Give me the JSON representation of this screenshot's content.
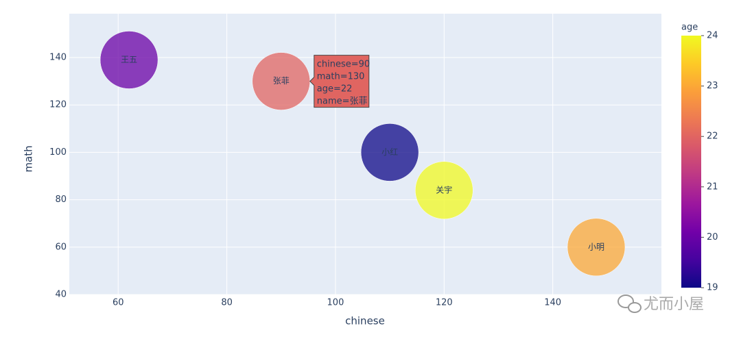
{
  "chart_data": {
    "type": "scatter",
    "x_label": "chinese",
    "y_label": "math",
    "series": [
      {
        "name": "name",
        "x": [
          62,
          90,
          110,
          120,
          148
        ],
        "y": [
          139,
          130,
          100,
          84,
          60
        ],
        "text": [
          "王五",
          "张菲",
          "小红",
          "关宇",
          "小明"
        ],
        "age": [
          20,
          22,
          19,
          24,
          23
        ]
      }
    ],
    "xlim": [
      51,
      160
    ],
    "xticks": [
      60,
      80,
      100,
      120,
      140
    ],
    "ylim": [
      40,
      158.5
    ],
    "yticks": [
      40,
      60,
      80,
      100,
      120,
      140
    ],
    "grid": true,
    "colorbar": {
      "title": "age",
      "lim": [
        19,
        24
      ],
      "ticks": [
        19,
        20,
        21,
        22,
        23,
        24
      ],
      "colorscale": [
        "#0d0887",
        "#46039f",
        "#7201a8",
        "#9c179e",
        "#bd3786",
        "#d8576b",
        "#ed7953",
        "#fb9f3a",
        "#fdca26",
        "#f0f921"
      ]
    },
    "tooltip": {
      "point": 1,
      "lines": [
        "chinese=90",
        "math=130",
        "age=22",
        "name=张菲"
      ]
    },
    "watermark": "尤而小屋"
  }
}
